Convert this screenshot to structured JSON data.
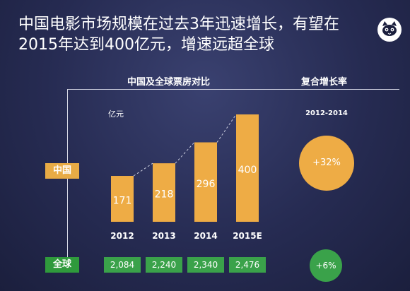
{
  "title": {
    "line1": "中国电影市场规模在过去3年迅速增长，有望在",
    "line2": "2015年达到400亿元，增速远超全球"
  },
  "logo_icon": "cat-face-icon",
  "left_panel_title": "中国及全球票房对比",
  "right_panel_title": "复合增长率",
  "labels": {
    "china": "中国",
    "global": "全球"
  },
  "colors": {
    "china_bar": "#eeac45",
    "global_green": "#3aa24a",
    "background": "#262b52"
  },
  "chart_data": {
    "type": "bar",
    "unit_label": "亿元",
    "categories": [
      "2012",
      "2013",
      "2014",
      "2015E"
    ],
    "series": [
      {
        "name": "中国",
        "values": [
          171,
          218,
          296,
          400
        ],
        "value_labels": [
          "171",
          "218",
          "296",
          "400"
        ]
      }
    ],
    "connector_lines": "dashed",
    "global_values": [
      2084,
      2240,
      2340,
      2476
    ],
    "global_labels": [
      "2,084",
      "2,240",
      "2,340",
      "2,476"
    ],
    "ylim": [
      0,
      400
    ]
  },
  "growth": {
    "period": "2012-2014",
    "china": "+32%",
    "global": "+6%"
  }
}
